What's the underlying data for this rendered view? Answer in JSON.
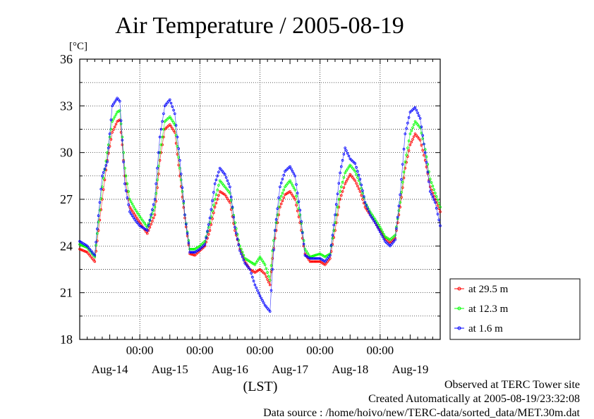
{
  "page": {
    "title": "Air Temperature / 2005-08-19"
  },
  "colors": {
    "red": "#ff0000",
    "green": "#00ff00",
    "blue": "#0000ff",
    "grid": "#000000"
  },
  "footer": {
    "line1": "Observed at TERC Tower site",
    "line2": "Created Automatically at 2005-08-19/23:32:08",
    "line3": "Data source : /home/hoivo/new/TERC-data/sorted_data/MET.30m.dat"
  },
  "chart_data": {
    "type": "line",
    "title": "Air Temperature / 2005-08-19",
    "ylabel": "[°C]",
    "xlabel": "(LST)",
    "ylim": [
      18,
      36
    ],
    "xlim": [
      0,
      144
    ],
    "yticks": [
      18,
      21,
      24,
      27,
      30,
      33,
      36
    ],
    "x_time_ticks": [
      {
        "x": 24,
        "label": "00:00"
      },
      {
        "x": 48,
        "label": "00:00"
      },
      {
        "x": 72,
        "label": "00:00"
      },
      {
        "x": 96,
        "label": "00:00"
      },
      {
        "x": 120,
        "label": "00:00"
      }
    ],
    "x_day_labels": [
      {
        "x": 12,
        "label": "Aug-14"
      },
      {
        "x": 36,
        "label": "Aug-15"
      },
      {
        "x": 60,
        "label": "Aug-16"
      },
      {
        "x": 84,
        "label": "Aug-17"
      },
      {
        "x": 108,
        "label": "Aug-18"
      },
      {
        "x": 132,
        "label": "Aug-19"
      }
    ],
    "x_unit": "hours from start of 2005-08-13 12:00 LST",
    "grid": true,
    "legend_position": "bottom-right outside",
    "series": [
      {
        "name": "at 29.5 m",
        "color": "#ff0000",
        "x": [
          0,
          3,
          6,
          9,
          11,
          13,
          15,
          16,
          17,
          18,
          20,
          22,
          24,
          27,
          30,
          32,
          34,
          36,
          38,
          40,
          42,
          44,
          46,
          48,
          50,
          52,
          54,
          56,
          58,
          60,
          62,
          64,
          66,
          68,
          70,
          72,
          74,
          76,
          77,
          78,
          80,
          82,
          84,
          86,
          88,
          90,
          92,
          94,
          96,
          98,
          100,
          102,
          104,
          106,
          108,
          110,
          112,
          114,
          116,
          118,
          120,
          122,
          124,
          126,
          128,
          130,
          132,
          134,
          136,
          138,
          140,
          142,
          144
        ],
        "y": [
          23.8,
          23.6,
          23.0,
          27.0,
          29.5,
          31.3,
          32.0,
          32.1,
          30.5,
          28.5,
          26.5,
          26.0,
          25.5,
          24.8,
          26.0,
          29.5,
          31.5,
          31.8,
          31.3,
          28.5,
          25.8,
          23.5,
          23.4,
          23.7,
          24.0,
          25.0,
          26.5,
          27.5,
          27.3,
          26.8,
          25.0,
          23.8,
          23.0,
          22.5,
          22.3,
          22.5,
          22.2,
          21.5,
          23.2,
          24.5,
          26.5,
          27.3,
          27.5,
          27.0,
          25.5,
          23.5,
          23.0,
          23.0,
          23.0,
          22.8,
          23.2,
          25.0,
          27.0,
          28.0,
          28.6,
          28.2,
          27.5,
          26.5,
          26.0,
          25.5,
          25.0,
          24.5,
          24.2,
          24.5,
          26.5,
          29.0,
          30.5,
          31.2,
          30.8,
          29.5,
          27.8,
          27.0,
          26.2
        ]
      },
      {
        "name": "at 12.3 m",
        "color": "#00ff00",
        "x": [
          0,
          3,
          6,
          9,
          11,
          13,
          15,
          16,
          17,
          18,
          20,
          22,
          24,
          27,
          30,
          32,
          34,
          36,
          38,
          40,
          42,
          44,
          46,
          48,
          50,
          52,
          54,
          56,
          58,
          60,
          62,
          64,
          66,
          68,
          70,
          72,
          74,
          76,
          77,
          78,
          80,
          82,
          84,
          86,
          88,
          90,
          92,
          94,
          96,
          98,
          100,
          102,
          104,
          106,
          108,
          110,
          112,
          114,
          116,
          118,
          120,
          122,
          124,
          126,
          128,
          130,
          132,
          134,
          136,
          138,
          140,
          142,
          144
        ],
        "y": [
          24.1,
          23.9,
          23.3,
          27.8,
          30.0,
          32.0,
          32.6,
          32.7,
          31.0,
          29.0,
          27.0,
          26.4,
          25.9,
          25.2,
          26.5,
          30.0,
          32.0,
          32.3,
          31.8,
          29.0,
          26.0,
          23.8,
          23.8,
          24.0,
          24.3,
          25.5,
          27.0,
          28.2,
          27.8,
          27.4,
          25.5,
          24.0,
          23.2,
          23.0,
          22.8,
          23.3,
          22.8,
          21.8,
          23.7,
          25.0,
          27.0,
          27.8,
          28.2,
          27.6,
          26.0,
          23.8,
          23.3,
          23.4,
          23.5,
          23.3,
          23.5,
          25.5,
          27.5,
          28.7,
          29.2,
          28.8,
          28.0,
          26.8,
          26.2,
          25.7,
          25.2,
          24.6,
          24.4,
          24.7,
          26.8,
          29.4,
          31.2,
          32.0,
          31.6,
          30.2,
          28.3,
          27.4,
          26.5
        ]
      },
      {
        "name": "at 1.6 m",
        "color": "#0000ff",
        "x": [
          0,
          3,
          6,
          9,
          11,
          13,
          15,
          16,
          17,
          18,
          20,
          22,
          24,
          27,
          30,
          32,
          34,
          36,
          38,
          40,
          42,
          44,
          46,
          48,
          50,
          52,
          54,
          56,
          58,
          60,
          62,
          64,
          66,
          68,
          70,
          72,
          74,
          76,
          77,
          78,
          80,
          82,
          84,
          86,
          88,
          90,
          92,
          94,
          96,
          98,
          100,
          102,
          104,
          106,
          108,
          110,
          112,
          114,
          116,
          118,
          120,
          122,
          124,
          126,
          128,
          130,
          132,
          134,
          136,
          138,
          140,
          142,
          144
        ],
        "y": [
          24.3,
          24.0,
          23.4,
          28.5,
          29.4,
          33.0,
          33.5,
          33.3,
          30.8,
          28.0,
          26.2,
          25.7,
          25.3,
          25.0,
          27.0,
          31.0,
          33.0,
          33.4,
          32.5,
          29.5,
          26.0,
          23.6,
          23.6,
          23.8,
          24.1,
          25.8,
          28.0,
          29.0,
          28.6,
          27.8,
          25.2,
          23.7,
          22.9,
          22.5,
          21.5,
          20.8,
          20.2,
          19.8,
          22.5,
          25.0,
          27.8,
          28.8,
          29.1,
          28.5,
          26.3,
          23.4,
          23.2,
          23.2,
          23.2,
          23.0,
          23.4,
          26.0,
          28.7,
          30.3,
          29.6,
          29.3,
          28.3,
          26.8,
          26.0,
          25.5,
          24.9,
          24.3,
          24.0,
          24.4,
          27.3,
          31.2,
          32.6,
          32.9,
          32.2,
          30.0,
          27.5,
          26.8,
          25.3
        ]
      }
    ]
  }
}
